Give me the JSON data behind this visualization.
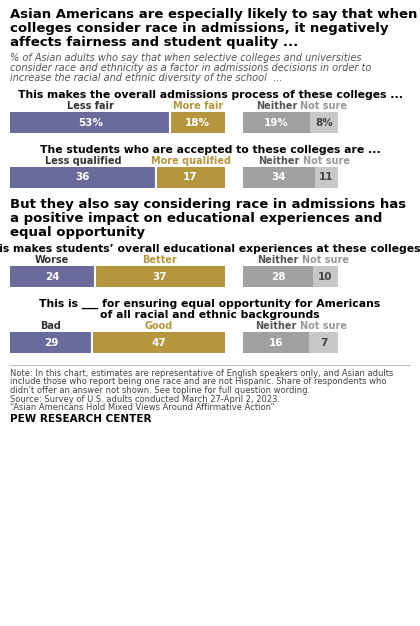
{
  "title1_lines": [
    "Asian Americans are especially likely to say that when",
    "colleges consider race in admissions, it negatively",
    "affects fairness and student quality ..."
  ],
  "subtitle_lines": [
    "% of Asian adults who say that when selective colleges and universities",
    "consider race and ethnicity as a factor in admissions decisions in order to",
    "increase the racial and ethnic diversity of the school  ..."
  ],
  "title2_lines": [
    "But they also say considering race in admissions has",
    "a positive impact on educational experiences and",
    "equal opportunity"
  ],
  "bars": [
    {
      "question_lines": [
        "This makes the overall admissions process of these colleges ..."
      ],
      "labels_left": [
        "Less fair",
        "More fair"
      ],
      "labels_right": [
        "Neither",
        "Not sure"
      ],
      "values": [
        53,
        18,
        19,
        8
      ],
      "value_labels": [
        "53%",
        "18%",
        "19%",
        "8%"
      ],
      "not_sure_color_label": "#999999"
    },
    {
      "question_lines": [
        "The students who are accepted to these colleges are ..."
      ],
      "labels_left": [
        "Less qualified",
        "More qualified"
      ],
      "labels_right": [
        "Neither",
        "Not sure"
      ],
      "values": [
        36,
        17,
        34,
        11
      ],
      "value_labels": [
        "36",
        "17",
        "34",
        "11"
      ],
      "not_sure_color_label": "#999999"
    },
    {
      "question_lines": [
        "This makes students’ overall educational experiences at these colleges ..."
      ],
      "labels_left": [
        "Worse",
        "Better"
      ],
      "labels_right": [
        "Neither",
        "Not sure"
      ],
      "values": [
        24,
        37,
        28,
        10
      ],
      "value_labels": [
        "24",
        "37",
        "28",
        "10"
      ],
      "not_sure_color_label": "#999999"
    },
    {
      "question_lines": [
        "This is ___ for ensuring equal opportunity for Americans",
        "of all racial and ethnic backgrounds"
      ],
      "labels_left": [
        "Bad",
        "Good"
      ],
      "labels_right": [
        "Neither",
        "Not sure"
      ],
      "values": [
        29,
        47,
        16,
        7
      ],
      "value_labels": [
        "29",
        "47",
        "16",
        "7"
      ],
      "not_sure_color_label": "#999999"
    }
  ],
  "colors": {
    "negative": "#6B6B9B",
    "positive": "#B5963E",
    "neither": "#A0A0A0",
    "not_sure": "#C8C8C8"
  },
  "note_lines": [
    "Note: In this chart, estimates are representative of English speakers only, and Asian adults",
    "include those who report being one race and are not Hispanic. Share of respondents who",
    "didn’t offer an answer not shown. See topline for full question wording.",
    "Source: Survey of U.S. adults conducted March 27-April 2, 2023.",
    "“Asian Americans Hold Mixed Views Around Affirmative Action”"
  ],
  "footer": "PEW RESEARCH CENTER"
}
